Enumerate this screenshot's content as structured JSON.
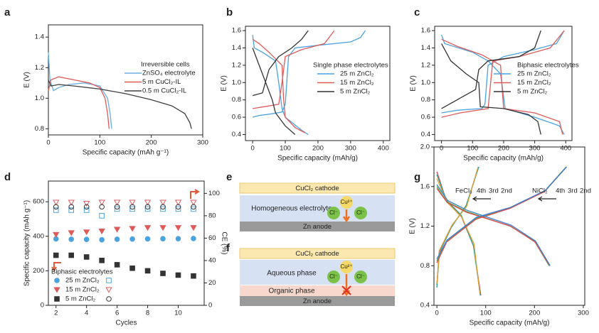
{
  "chart_data": [
    {
      "type": "line",
      "panel": "a",
      "x_label": "Specific capacity (mAh g⁻¹)",
      "y_label": "E (V)",
      "xlim": [
        0,
        300
      ],
      "xticks": [
        0,
        100,
        200,
        300
      ],
      "ylim": [
        0.76,
        1.48
      ],
      "yticks": [
        0.8,
        {
          "value": 1,
          "label": "1.0"
        },
        1.2,
        1.4
      ],
      "legend_title": "Irreversible cells",
      "series": [
        {
          "name": "ZnSO₄ electrolyte",
          "color": "#6aaee0",
          "x": [
            0,
            3,
            10,
            20,
            40,
            70,
            100,
            115,
            120,
            123
          ],
          "values": [
            1.3,
            1.12,
            1.05,
            1.07,
            1.09,
            1.1,
            1.08,
            1.0,
            0.9,
            0.8
          ]
        },
        {
          "name": "5 m CuCl₂-IL",
          "color": "#e05a5a",
          "x": [
            0,
            5,
            20,
            50,
            80,
            100,
            110,
            115,
            118
          ],
          "values": [
            1.05,
            1.12,
            1.14,
            1.12,
            1.1,
            1.07,
            1.0,
            0.9,
            0.8
          ]
        },
        {
          "name": "0.5 m CuCl₂-IL",
          "color": "#404040",
          "x": [
            0,
            5,
            20,
            50,
            100,
            150,
            200,
            240,
            265,
            275,
            278
          ],
          "values": [
            1.12,
            1.08,
            1.09,
            1.08,
            1.06,
            1.03,
            0.99,
            0.95,
            0.9,
            0.84,
            0.8
          ]
        }
      ]
    },
    {
      "type": "line",
      "panel": "b",
      "x_label": "Specific capacity (mAh/g)",
      "y_label": "E (V)",
      "xlim": [
        -22,
        420
      ],
      "xticks": [
        0,
        100,
        200,
        300,
        400
      ],
      "ylim": [
        0.33,
        1.65
      ],
      "yticks": [
        0.4,
        0.6,
        0.8,
        {
          "value": 1,
          "label": "1.0"
        },
        1.2,
        1.4,
        1.6
      ],
      "legend_title": "Single phase electrolytes",
      "series": [
        {
          "name": "25 m ZnCl₂",
          "color": "#4aa3df",
          "x": [
            0,
            20,
            60,
            90,
            100,
            110,
            130,
            200,
            300,
            330,
            345,
            null,
            0,
            5,
            30,
            70,
            80,
            90,
            100,
            150,
            170
          ],
          "values": [
            0.6,
            0.62,
            0.64,
            0.66,
            0.75,
            1.3,
            1.4,
            1.43,
            1.47,
            1.52,
            1.6,
            null,
            1.55,
            1.4,
            1.35,
            1.25,
            1.0,
            0.7,
            0.6,
            0.45,
            0.4
          ]
        },
        {
          "name": "15 m ZnCl₂",
          "color": "#e05a5a",
          "x": [
            0,
            50,
            80,
            90,
            100,
            150,
            220,
            250,
            null,
            0,
            20,
            50,
            90,
            95,
            100,
            130,
            160
          ],
          "values": [
            0.7,
            0.73,
            0.75,
            1.0,
            1.3,
            1.38,
            1.45,
            1.6,
            null,
            1.5,
            1.45,
            1.35,
            1.2,
            0.8,
            0.6,
            0.48,
            0.42
          ]
        },
        {
          "name": "5 m ZnCl₂",
          "color": "#333333",
          "x": [
            0,
            30,
            50,
            80,
            120,
            150,
            170,
            null,
            0,
            20,
            40,
            60,
            70,
            100,
            130
          ],
          "values": [
            0.85,
            0.88,
            1.15,
            1.3,
            1.4,
            1.5,
            1.6,
            null,
            1.4,
            1.2,
            1.0,
            0.8,
            0.65,
            0.5,
            0.4
          ]
        }
      ]
    },
    {
      "type": "line",
      "panel": "c",
      "x_label": "Specific capacity (mAh/g)",
      "y_label": "E (V)",
      "xlim": [
        -22,
        420
      ],
      "xticks": [
        0,
        100,
        200,
        300,
        400
      ],
      "ylim": [
        0.33,
        1.65
      ],
      "yticks": [
        0.4,
        0.6,
        0.8,
        {
          "value": 1,
          "label": "1.0"
        },
        1.2,
        1.4,
        1.6
      ],
      "legend_title": "Biphasic electrolytes",
      "series": [
        {
          "name": "25 m ZnCl₂",
          "color": "#4aa3df",
          "x": [
            0,
            50,
            130,
            140,
            150,
            200,
            300,
            370,
            395,
            null,
            0,
            10,
            100,
            150,
            190,
            205,
            300,
            380,
            395
          ],
          "values": [
            0.65,
            0.68,
            0.7,
            0.75,
            1.2,
            1.3,
            1.38,
            1.45,
            1.6,
            null,
            1.55,
            1.45,
            1.35,
            1.25,
            1.1,
            0.7,
            0.6,
            0.5,
            0.4
          ]
        },
        {
          "name": "15 m ZnCl₂",
          "color": "#e05a5a",
          "x": [
            0,
            60,
            150,
            165,
            250,
            350,
            395,
            null,
            0,
            50,
            130,
            190,
            200,
            300,
            380,
            390
          ],
          "values": [
            0.6,
            0.65,
            0.7,
            1.25,
            1.3,
            1.4,
            1.6,
            null,
            1.5,
            1.42,
            1.32,
            1.2,
            0.7,
            0.65,
            0.55,
            0.4
          ]
        },
        {
          "name": "5 m ZnCl₂",
          "color": "#333333",
          "x": [
            0,
            60,
            110,
            120,
            150,
            250,
            300,
            320,
            null,
            0,
            30,
            80,
            120,
            125,
            200,
            280,
            310,
            320
          ],
          "values": [
            0.7,
            0.82,
            0.92,
            1.15,
            1.25,
            1.3,
            1.4,
            1.6,
            null,
            1.45,
            1.25,
            1.1,
            1.0,
            0.72,
            0.7,
            0.63,
            0.55,
            0.4
          ]
        }
      ]
    },
    {
      "type": "scatter",
      "panel": "d",
      "x_label": "Cycles",
      "y_label": "Specific capacity (mAh g⁻¹)",
      "y2_label": "CE (%)",
      "xlim": [
        1.5,
        11.7
      ],
      "xticks": [
        2,
        4,
        6,
        8,
        10
      ],
      "ylim": [
        0,
        720
      ],
      "yticks": [
        0,
        200,
        400,
        600
      ],
      "y2lim": [
        0,
        111
      ],
      "y2ticks": [
        0,
        20,
        40,
        60,
        80,
        100
      ],
      "legend_title": "Biphasic electrolytes",
      "x": [
        2,
        3,
        4,
        5,
        6,
        7,
        8,
        9,
        10,
        11
      ],
      "series": [
        {
          "name": "25 m ZnCl₂",
          "color": "#4aa3df",
          "marker": "circle",
          "y2_marker": "square",
          "values": [
            385,
            383,
            382,
            380,
            383,
            384,
            385,
            386,
            386,
            387
          ],
          "y2_values": [
            85,
            85,
            85,
            80,
            86,
            86,
            86,
            86,
            86,
            86
          ]
        },
        {
          "name": "15 m ZnCl₂",
          "color": "#e05a5a",
          "marker": "triangle",
          "y2_marker": "triangle",
          "values": [
            410,
            420,
            425,
            430,
            440,
            445,
            450,
            450,
            450,
            450
          ],
          "y2_values": [
            92,
            92,
            91,
            92,
            92,
            92,
            92,
            92,
            92,
            92
          ]
        },
        {
          "name": "5 m ZnCl₂",
          "color": "#333333",
          "marker": "square",
          "y2_marker": "circle",
          "values": [
            290,
            290,
            280,
            260,
            235,
            215,
            200,
            185,
            175,
            170
          ],
          "y2_values": [
            88,
            88,
            88,
            88,
            88,
            88,
            88,
            88,
            88,
            88
          ]
        }
      ]
    },
    {
      "type": "line",
      "panel": "g",
      "x_label": "Specific capacity (mAh/g)",
      "y_label": "E (V)",
      "xlim": [
        -6,
        303
      ],
      "xticks": [
        0,
        100,
        200,
        300
      ],
      "ylim": [
        0.4,
        2.0
      ],
      "yticks": [
        0.4,
        0.8,
        1.2,
        1.6,
        {
          "value": 2,
          "label": "2.0"
        }
      ],
      "groups": [
        {
          "name": "FeCl₃",
          "series": [
            {
              "name": "4th",
              "color": "#e0484a",
              "x": [
                0,
                5,
                30,
                60,
                85,
                null,
                0,
                20,
                50,
                75,
                90
              ],
              "values": [
                0.6,
                0.95,
                1.2,
                1.4,
                1.8,
                null,
                1.75,
                1.45,
                1.3,
                1.0,
                0.5
              ]
            },
            {
              "name": "3rd",
              "color": "#2aa198",
              "x": [
                0,
                5,
                30,
                60,
                86,
                null,
                0,
                20,
                50,
                75,
                89
              ],
              "values": [
                0.58,
                0.93,
                1.19,
                1.41,
                1.8,
                null,
                1.72,
                1.46,
                1.31,
                1.0,
                0.5
              ]
            },
            {
              "name": "2nd",
              "color": "#e0a030",
              "x": [
                0,
                6,
                31,
                61,
                84,
                null,
                0,
                21,
                51,
                76,
                88
              ],
              "values": [
                0.62,
                0.96,
                1.21,
                1.4,
                1.79,
                null,
                1.68,
                1.44,
                1.29,
                1.02,
                0.52
              ]
            }
          ]
        },
        {
          "name": "NiCl₂",
          "series": [
            {
              "name": "4th",
              "color": "#4caf50",
              "x": [
                0,
                20,
                80,
                150,
                220,
                265,
                null,
                0,
                20,
                60,
                150,
                200,
                230
              ],
              "values": [
                0.85,
                1.05,
                1.28,
                1.38,
                1.55,
                1.8,
                null,
                1.6,
                1.45,
                1.35,
                1.2,
                1.05,
                0.8
              ]
            },
            {
              "name": "3rd",
              "color": "#e04848",
              "x": [
                0,
                20,
                80,
                150,
                221,
                264,
                null,
                0,
                21,
                61,
                151,
                201,
                231
              ],
              "values": [
                0.83,
                1.04,
                1.27,
                1.38,
                1.55,
                1.79,
                null,
                1.58,
                1.44,
                1.34,
                1.2,
                1.04,
                0.8
              ]
            },
            {
              "name": "2nd",
              "color": "#3a7fd5",
              "x": [
                0,
                21,
                81,
                151,
                222,
                266,
                null,
                0,
                22,
                62,
                152,
                202,
                232
              ],
              "values": [
                0.87,
                1.06,
                1.29,
                1.39,
                1.56,
                1.8,
                null,
                1.62,
                1.46,
                1.36,
                1.21,
                1.05,
                0.8
              ]
            }
          ]
        }
      ]
    }
  ],
  "diagrams": [
    {
      "panel": "e",
      "cathode": "CuCl₂ cathode",
      "electrolyte": "Homogeneous electrolyte",
      "anode": "Zn anode",
      "cation": "Cu²⁺",
      "anions": [
        "Cl⁻",
        "Cl⁻"
      ]
    },
    {
      "panel": "f",
      "cathode": "CuCl₂ cathode",
      "aqueous": "Aqueous phase",
      "organic": "Organic phase",
      "anode": "Zn anode",
      "cation": "Cu²⁺",
      "anions": [
        "Cl⁻",
        "Cl⁻"
      ]
    }
  ]
}
